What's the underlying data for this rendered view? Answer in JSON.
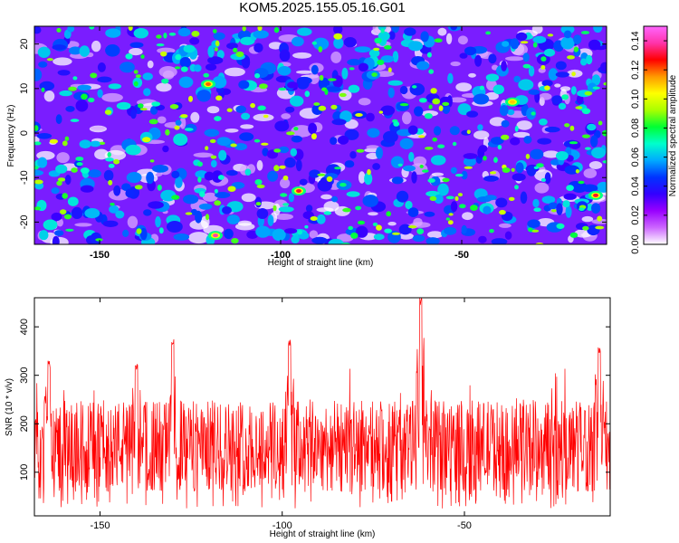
{
  "title": "KOM5.2025.155.05.16.G01",
  "chart_data": [
    {
      "type": "heatmap",
      "xlabel": "Height of straight line (km)",
      "ylabel": "Frequency (Hz)",
      "xlim": [
        -168,
        -10
      ],
      "ylim": [
        -25,
        24
      ],
      "xticks": [
        -150,
        -100,
        -50
      ],
      "yticks": [
        -20,
        -10,
        0,
        10,
        20
      ],
      "colorbar": {
        "label": "Normalized spectral amplitude",
        "range": [
          0,
          0.15
        ],
        "ticks": [
          "0.00",
          "0.02",
          "0.04",
          "0.06",
          "0.08",
          "0.10",
          "0.12",
          "0.14"
        ],
        "colors": [
          "#ffffff",
          "#cc66ff",
          "#9900ff",
          "#3300ff",
          "#0033ff",
          "#00aaff",
          "#00ffcc",
          "#00ff33",
          "#aaff00",
          "#ffff00",
          "#ff9900",
          "#ff0000",
          "#ff33aa",
          "#ff66ff"
        ]
      },
      "peaks": [
        {
          "x": -118,
          "y": -23,
          "value": 0.14
        },
        {
          "x": -95,
          "y": -13,
          "value": 0.13
        },
        {
          "x": -13,
          "y": -14,
          "value": 0.13
        },
        {
          "x": -120,
          "y": 11,
          "value": 0.12
        },
        {
          "x": -36,
          "y": 7,
          "value": 0.11
        }
      ]
    },
    {
      "type": "line",
      "xlabel": "Height of straight line (km)",
      "ylabel": "SNR (10 * v/v)",
      "xlim": [
        -168,
        -10
      ],
      "ylim": [
        10,
        460
      ],
      "xticks": [
        -150,
        -100,
        -50
      ],
      "yticks": [
        100,
        200,
        300,
        400
      ],
      "series": [
        {
          "color": "#ff0000",
          "typical_range": [
            60,
            250
          ],
          "peaks": [
            {
              "x": -62,
              "y": 460
            },
            {
              "x": -13,
              "y": 360
            },
            {
              "x": -98,
              "y": 375
            },
            {
              "x": -140,
              "y": 325
            },
            {
              "x": -130,
              "y": 375
            },
            {
              "x": -164,
              "y": 330
            }
          ]
        }
      ]
    }
  ]
}
